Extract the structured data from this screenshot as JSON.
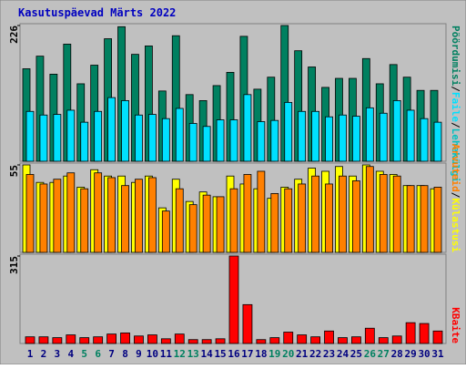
{
  "chart_data": [
    {
      "type": "bar",
      "title": "Kasutuspäevad Märts 2022",
      "legend_separator": "/",
      "series": [
        {
          "name": "Pöördumisi",
          "color": "#008060",
          "values": [
            154,
            175,
            145,
            195,
            129,
            160,
            204,
            224,
            178,
            192,
            117,
            209,
            111,
            101,
            126,
            148,
            208,
            120,
            140,
            226,
            184,
            157,
            123,
            138,
            138,
            171,
            129,
            161,
            140,
            118,
            118
          ]
        },
        {
          "name": "Faile",
          "color": "#00E0FF",
          "values": [
            83,
            77,
            78,
            85,
            65,
            83,
            106,
            101,
            77,
            78,
            71,
            88,
            63,
            58,
            69,
            69,
            111,
            66,
            68,
            98,
            83,
            83,
            74,
            77,
            75,
            89,
            80,
            101,
            85,
            71,
            65
          ]
        }
      ],
      "extra_legend": "Lehekülgi",
      "ylim": [
        0,
        226
      ],
      "yticks": [
        226
      ]
    },
    {
      "type": "bar",
      "series": [
        {
          "name": "Külastusi",
          "color": "#FFFF00",
          "values": [
            55,
            44,
            44,
            48,
            41,
            52,
            48,
            48,
            44,
            48,
            28,
            46,
            32,
            38,
            35,
            48,
            43,
            40,
            34,
            41,
            46,
            53,
            51,
            54,
            48,
            55,
            51,
            49,
            42,
            42,
            40
          ]
        },
        {
          "name": "Arvuteid",
          "color": "#FF8000",
          "values": [
            49,
            43,
            46,
            50,
            40,
            50,
            47,
            42,
            46,
            47,
            26,
            40,
            30,
            36,
            35,
            40,
            49,
            51,
            37,
            40,
            43,
            48,
            43,
            48,
            45,
            54,
            49,
            48,
            42,
            42,
            41
          ]
        }
      ],
      "ylim": [
        0,
        55
      ],
      "yticks": [
        55
      ]
    },
    {
      "type": "bar",
      "categories": [
        "1",
        "2",
        "3",
        "4",
        "5",
        "6",
        "7",
        "8",
        "9",
        "10",
        "11",
        "12",
        "13",
        "14",
        "15",
        "16",
        "17",
        "18",
        "19",
        "20",
        "21",
        "22",
        "23",
        "24",
        "25",
        "26",
        "27",
        "28",
        "29",
        "30",
        "31"
      ],
      "category_colors": [
        "#000080",
        "#000080",
        "#000080",
        "#000080",
        "#008060",
        "#008060",
        "#000080",
        "#000080",
        "#000080",
        "#000080",
        "#000080",
        "#008060",
        "#008060",
        "#000080",
        "#000080",
        "#000080",
        "#000080",
        "#000080",
        "#008060",
        "#008060",
        "#000080",
        "#000080",
        "#000080",
        "#000080",
        "#000080",
        "#008060",
        "#008060",
        "#000080",
        "#000080",
        "#000080",
        "#000080"
      ],
      "series": [
        {
          "name": "KBaite",
          "color": "#FF0000",
          "values": [
            24,
            24,
            21,
            31,
            21,
            24,
            34,
            38,
            27,
            31,
            17,
            34,
            14,
            14,
            17,
            315,
            140,
            14,
            21,
            41,
            31,
            24,
            45,
            21,
            24,
            55,
            21,
            27,
            75,
            72,
            45
          ]
        }
      ],
      "ylim": [
        0,
        315
      ],
      "yticks": [
        315
      ]
    }
  ]
}
